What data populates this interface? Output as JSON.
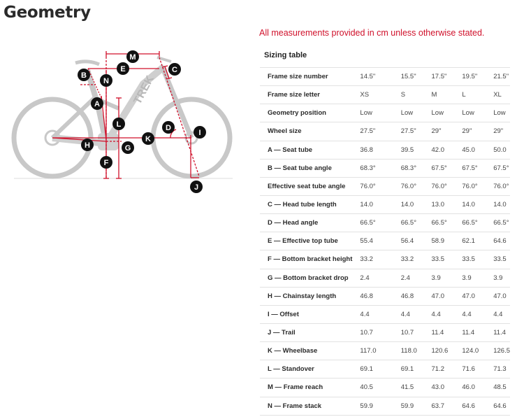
{
  "page_title": "Geometry",
  "note": "All measurements provided in cm unless otherwise stated.",
  "accent_color": "#d0112b",
  "diagram": {
    "labels": [
      "M",
      "E",
      "C",
      "B",
      "N",
      "A",
      "L",
      "D",
      "I",
      "K",
      "H",
      "G",
      "F",
      "J"
    ],
    "brand_text": "TREK"
  },
  "sizing_table": {
    "title": "Sizing table",
    "rows": [
      {
        "label": "Frame size number",
        "values": [
          "14.5\"",
          "15.5\"",
          "17.5\"",
          "19.5\"",
          "21.5\""
        ]
      },
      {
        "label": "Frame size letter",
        "values": [
          "XS",
          "S",
          "M",
          "L",
          "XL"
        ]
      },
      {
        "label": "Geometry position",
        "values": [
          "Low",
          "Low",
          "Low",
          "Low",
          "Low"
        ]
      },
      {
        "label": "Wheel size",
        "values": [
          "27.5\"",
          "27.5\"",
          "29\"",
          "29\"",
          "29\""
        ]
      },
      {
        "label": "A — Seat tube",
        "values": [
          "36.8",
          "39.5",
          "42.0",
          "45.0",
          "50.0"
        ]
      },
      {
        "label": "B — Seat tube angle",
        "values": [
          "68.3°",
          "68.3°",
          "67.5°",
          "67.5°",
          "67.5°"
        ]
      },
      {
        "label": "Effective seat tube angle",
        "values": [
          "76.0°",
          "76.0°",
          "76.0°",
          "76.0°",
          "76.0°"
        ]
      },
      {
        "label": "C — Head tube length",
        "values": [
          "14.0",
          "14.0",
          "13.0",
          "14.0",
          "14.0"
        ]
      },
      {
        "label": "D — Head angle",
        "values": [
          "66.5°",
          "66.5°",
          "66.5°",
          "66.5°",
          "66.5°"
        ]
      },
      {
        "label": "E — Effective top tube",
        "values": [
          "55.4",
          "56.4",
          "58.9",
          "62.1",
          "64.6"
        ]
      },
      {
        "label": "F — Bottom bracket height",
        "values": [
          "33.2",
          "33.2",
          "33.5",
          "33.5",
          "33.5"
        ]
      },
      {
        "label": "G — Bottom bracket drop",
        "values": [
          "2.4",
          "2.4",
          "3.9",
          "3.9",
          "3.9"
        ]
      },
      {
        "label": "H — Chainstay length",
        "values": [
          "46.8",
          "46.8",
          "47.0",
          "47.0",
          "47.0"
        ]
      },
      {
        "label": "I — Offset",
        "values": [
          "4.4",
          "4.4",
          "4.4",
          "4.4",
          "4.4"
        ]
      },
      {
        "label": "J — Trail",
        "values": [
          "10.7",
          "10.7",
          "11.4",
          "11.4",
          "11.4"
        ]
      },
      {
        "label": "K — Wheelbase",
        "values": [
          "117.0",
          "118.0",
          "120.6",
          "124.0",
          "126.5"
        ]
      },
      {
        "label": "L — Standover",
        "values": [
          "69.1",
          "69.1",
          "71.2",
          "71.6",
          "71.3"
        ]
      },
      {
        "label": "M — Frame reach",
        "values": [
          "40.5",
          "41.5",
          "43.0",
          "46.0",
          "48.5"
        ]
      },
      {
        "label": "N — Frame stack",
        "values": [
          "59.9",
          "59.9",
          "63.7",
          "64.6",
          "64.6"
        ]
      }
    ]
  }
}
